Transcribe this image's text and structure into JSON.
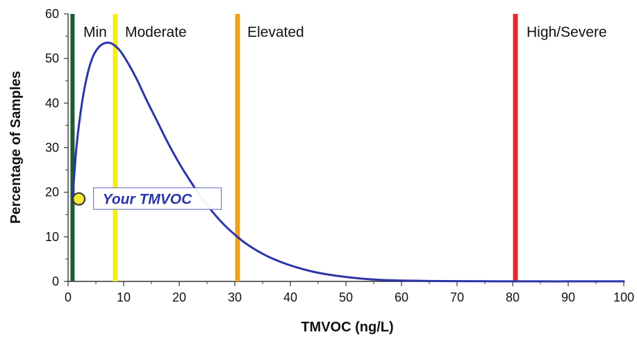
{
  "chart_data": {
    "type": "line",
    "title": "",
    "xlabel": "TMVOC (ng/L)",
    "ylabel": "Percentage of Samples",
    "xlim": [
      0,
      100
    ],
    "ylim": [
      0,
      60
    ],
    "x_ticks": [
      0,
      10,
      20,
      30,
      40,
      50,
      60,
      70,
      80,
      90,
      100
    ],
    "y_ticks": [
      0,
      10,
      20,
      30,
      40,
      50,
      60
    ],
    "x_tick_labels": [
      "0",
      "10",
      "20",
      "30",
      "40",
      "50",
      "60",
      "70",
      "80",
      "90",
      "100"
    ],
    "y_tick_labels": [
      "0",
      "10",
      "20",
      "30",
      "40",
      "50",
      "60"
    ],
    "grid": false,
    "series": [
      {
        "color": "#2b35a6",
        "x": [
          0.8,
          1.5,
          2.5,
          3.5,
          4.5,
          5.5,
          6.5,
          7.5,
          8.5,
          9.5,
          11,
          12.5,
          14,
          16,
          18,
          20,
          22,
          24,
          26,
          28,
          30,
          32,
          35,
          38,
          41,
          44,
          47,
          50,
          53,
          56,
          60,
          65,
          70,
          75,
          80,
          85,
          90,
          95,
          100
        ],
        "values": [
          18,
          30,
          40,
          46.5,
          50.5,
          52.5,
          53.4,
          53.5,
          52.8,
          51.5,
          48.5,
          45,
          41,
          36,
          31,
          26.5,
          22.5,
          18.8,
          15.6,
          12.8,
          10.5,
          8.5,
          6.2,
          4.5,
          3.2,
          2.2,
          1.5,
          1.0,
          0.6,
          0.35,
          0.2,
          0.1,
          0.05,
          0.03,
          0.02,
          0.01,
          0.01,
          0.01,
          0.01
        ]
      }
    ],
    "thresholds": [
      {
        "label": "Min",
        "x": 0.8,
        "color": "#1f5c2e"
      },
      {
        "label": "Moderate",
        "x": 8.5,
        "color": "#f5ec1a"
      },
      {
        "label": "Elevated",
        "x": 30.5,
        "color": "#f2a020"
      },
      {
        "label": "High/Severe",
        "x": 80.5,
        "color": "#e8262a"
      }
    ],
    "marker": {
      "label": "Your TMVOC",
      "x": 1.2,
      "y": 18.5,
      "fill": "#f6ea34",
      "stroke": "#3a3a3a",
      "label_color": "#2b35a6"
    }
  }
}
